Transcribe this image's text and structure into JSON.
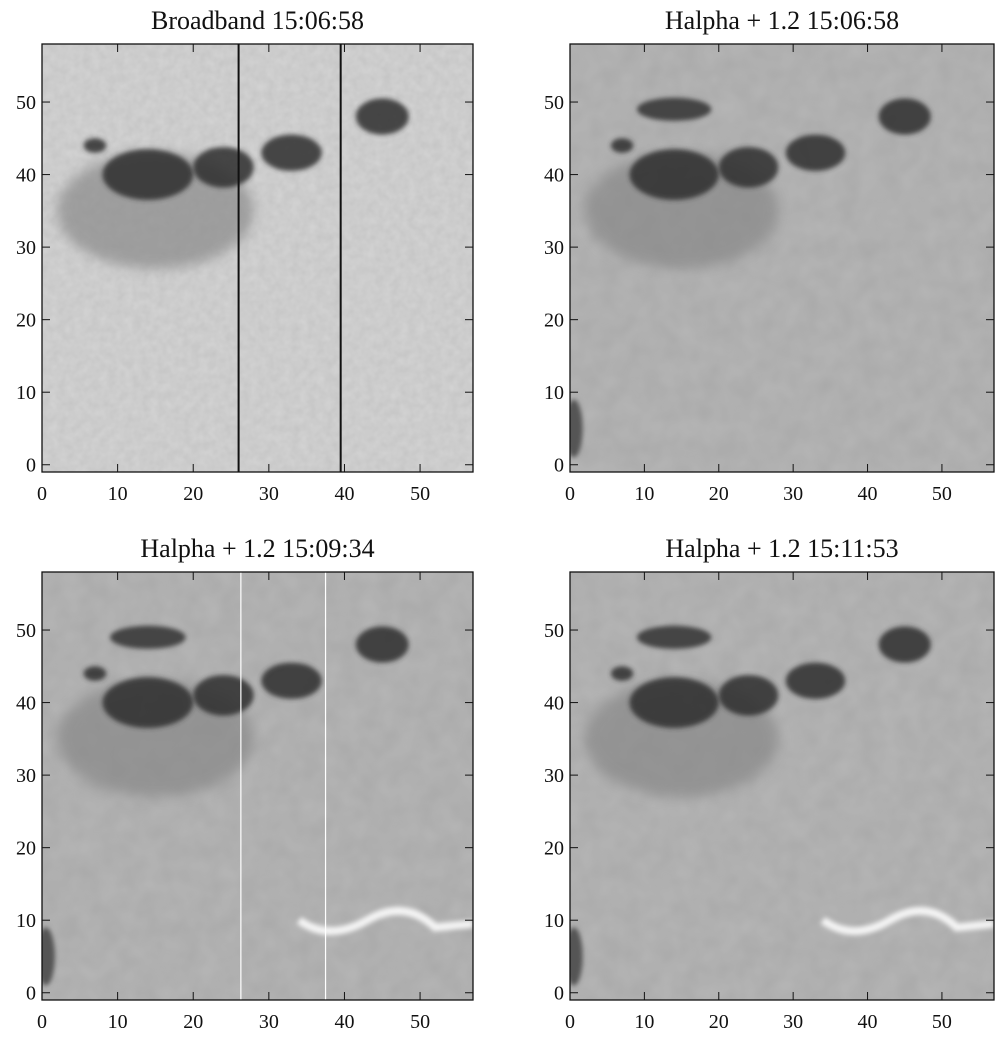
{
  "chart_data": [
    {
      "type": "image",
      "title": "Broadband 15:06:58",
      "xlim": [
        0,
        57
      ],
      "ylim": [
        -1,
        58
      ],
      "xticks": [
        0,
        10,
        20,
        30,
        40,
        50
      ],
      "yticks": [
        0,
        10,
        20,
        30,
        40,
        50
      ],
      "vlines": [
        26,
        39.5
      ],
      "vline_color": "#111111",
      "ribbon": false,
      "filament": false
    },
    {
      "type": "image",
      "title": "Halpha + 1.2 15:06:58",
      "xlim": [
        0,
        57
      ],
      "ylim": [
        -1,
        58
      ],
      "xticks": [
        0,
        10,
        20,
        30,
        40,
        50
      ],
      "yticks": [
        0,
        10,
        20,
        30,
        40,
        50
      ],
      "vlines": [],
      "vline_color": "#ffffff",
      "ribbon": false,
      "filament": true
    },
    {
      "type": "image",
      "title": "Halpha + 1.2 15:09:34",
      "xlim": [
        0,
        57
      ],
      "ylim": [
        -1,
        58
      ],
      "xticks": [
        0,
        10,
        20,
        30,
        40,
        50
      ],
      "yticks": [
        0,
        10,
        20,
        30,
        40,
        50
      ],
      "vlines": [
        26.3,
        37.5
      ],
      "vline_color": "#ffffff",
      "ribbon": true,
      "filament": true
    },
    {
      "type": "image",
      "title": "Halpha + 1.2 15:11:53",
      "xlim": [
        0,
        57
      ],
      "ylim": [
        -1,
        58
      ],
      "xticks": [
        0,
        10,
        20,
        30,
        40,
        50
      ],
      "yticks": [
        0,
        10,
        20,
        30,
        40,
        50
      ],
      "vlines": [],
      "vline_color": "#ffffff",
      "ribbon": true,
      "filament": true
    }
  ]
}
